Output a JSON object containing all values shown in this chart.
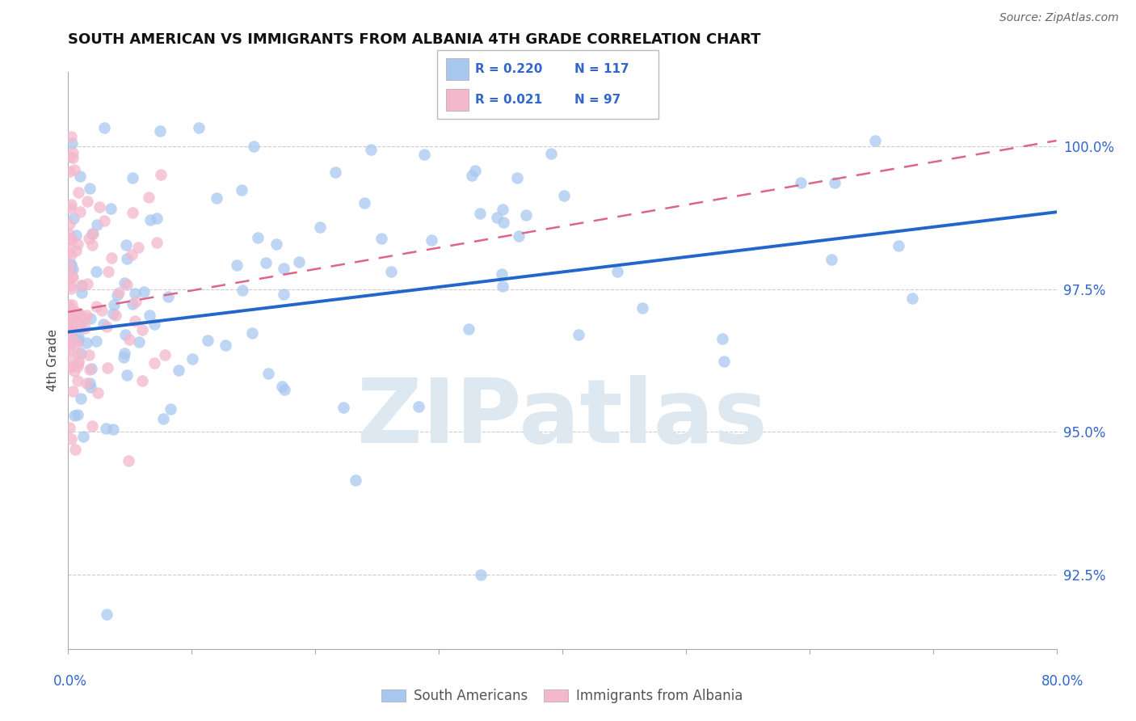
{
  "title": "SOUTH AMERICAN VS IMMIGRANTS FROM ALBANIA 4TH GRADE CORRELATION CHART",
  "source": "Source: ZipAtlas.com",
  "ylabel": "4th Grade",
  "ytick_values": [
    92.5,
    95.0,
    97.5,
    100.0
  ],
  "xlim": [
    0.0,
    80.0
  ],
  "ylim": [
    91.2,
    101.3
  ],
  "legend_blue_r": "R = 0.220",
  "legend_blue_n": "N = 117",
  "legend_pink_r": "R = 0.021",
  "legend_pink_n": "N = 97",
  "blue_color": "#a8c8f0",
  "blue_edge_color": "#88aadd",
  "blue_line_color": "#2266cc",
  "pink_color": "#f4b8cc",
  "pink_edge_color": "#dd88aa",
  "pink_line_color": "#dd6688",
  "watermark_color": "#dde8f0",
  "watermark": "ZIPatlas",
  "blue_trend_x0": 0.0,
  "blue_trend_x1": 80.0,
  "blue_trend_y0": 96.75,
  "blue_trend_y1": 98.85,
  "pink_trend_x0": 0.0,
  "pink_trend_x1": 80.0,
  "pink_trend_y0": 97.1,
  "pink_trend_y1": 100.1,
  "title_color": "#111111",
  "source_color": "#666666",
  "axis_label_color": "#3366cc",
  "ytick_color": "#3366cc",
  "legend_text_color": "#3366cc",
  "grid_color": "#cccccc",
  "bottom_legend_color": "#555555"
}
